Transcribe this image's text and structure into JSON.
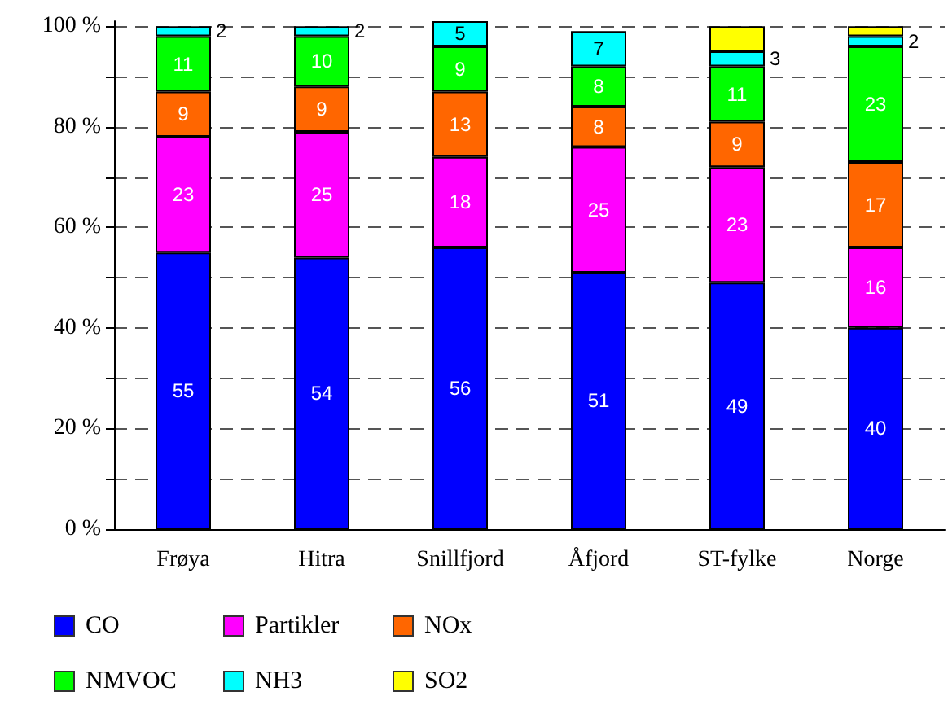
{
  "chart_data": {
    "type": "bar",
    "stacked": true,
    "categories": [
      "Frøya",
      "Hitra",
      "Snillfjord",
      "Åfjord",
      "ST-fylke",
      "Norge"
    ],
    "series": [
      {
        "name": "CO",
        "color": "#0000ff",
        "values": [
          55,
          54,
          56,
          51,
          49,
          40
        ],
        "value_labels": [
          "55",
          "54",
          "56",
          "51",
          "49",
          "40"
        ]
      },
      {
        "name": "Partikler",
        "color": "#ff00ff",
        "values": [
          23,
          25,
          18,
          25,
          23,
          16
        ],
        "value_labels": [
          "23",
          "25",
          "18",
          "25",
          "23",
          "16"
        ]
      },
      {
        "name": "NOx",
        "color": "#ff6600",
        "values": [
          9,
          9,
          13,
          8,
          9,
          17
        ],
        "value_labels": [
          "9",
          "9",
          "13",
          "8",
          "9",
          "17"
        ]
      },
      {
        "name": "NMVOC",
        "color": "#00ff00",
        "values": [
          11,
          10,
          9,
          8,
          11,
          23
        ],
        "value_labels": [
          "11",
          "10",
          "9",
          "8",
          "11",
          "23"
        ]
      },
      {
        "name": "NH3",
        "color": "#00ffff",
        "values": [
          2,
          2,
          5,
          7,
          3,
          2
        ],
        "value_labels": [
          "2",
          "2",
          "5",
          "7",
          "3",
          "2"
        ]
      },
      {
        "name": "SO2",
        "color": "#ffff00",
        "values": [
          null,
          null,
          null,
          null,
          5,
          2
        ],
        "value_labels": [
          null,
          null,
          null,
          null,
          null,
          null
        ]
      }
    ],
    "ylim": [
      0,
      101
    ],
    "yticks": [
      {
        "value": 0,
        "label": "0 %"
      },
      {
        "value": 10,
        "label": null
      },
      {
        "value": 20,
        "label": "20 %"
      },
      {
        "value": 30,
        "label": null
      },
      {
        "value": 40,
        "label": "40 %"
      },
      {
        "value": 50,
        "label": null
      },
      {
        "value": 60,
        "label": "60 %"
      },
      {
        "value": 70,
        "label": null
      },
      {
        "value": 80,
        "label": "80 %"
      },
      {
        "value": 90,
        "label": null
      },
      {
        "value": 100,
        "label": "100 %"
      }
    ],
    "grid": true,
    "legend": "bottom"
  }
}
